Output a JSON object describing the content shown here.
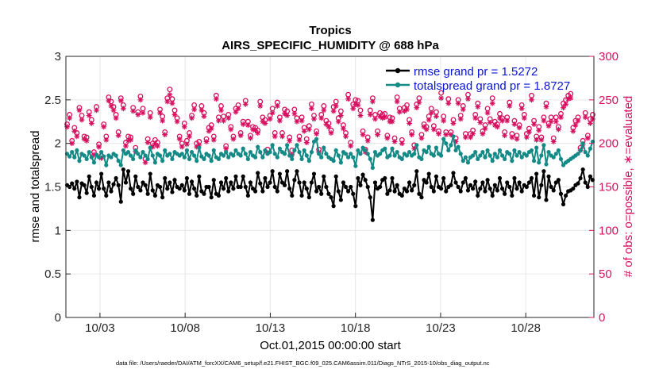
{
  "chart_data": {
    "type": "line",
    "title": "Tropics",
    "subtitle": "AIRS_SPECIFIC_HUMIDITY @ 688 hPa",
    "xlabel": "Oct.01,2015 00:00:00 start",
    "ylabel": "rmse and totalspread",
    "ylabel_right": "# of obs: o=possible, ∗=evaluated",
    "footnote": "data file: /Users/raeder/DAI/ATM_forcXX/CAM6_setup/f.e21.FHIST_BGC.f09_025.CAM6assim.011/Diags_NTrS_2015-10/obs_diag_output.nc",
    "x_range": [
      1,
      32
    ],
    "x_ticks": [
      3,
      8,
      13,
      18,
      23,
      28
    ],
    "x_tick_labels": [
      "10/03",
      "10/08",
      "10/13",
      "10/18",
      "10/23",
      "10/28"
    ],
    "ylim": [
      0,
      3
    ],
    "y_ticks": [
      "0",
      "0.5",
      "1",
      "1.5",
      "2",
      "2.5",
      "3"
    ],
    "ylim_right": [
      0,
      300
    ],
    "y_ticks_right": [
      "0",
      "50",
      "100",
      "150",
      "200",
      "250",
      "300"
    ],
    "grid": true,
    "legend_position": "top-right",
    "series": [
      {
        "name": "rmse grand pr = 1.5272",
        "axis": "left",
        "color": "#000000",
        "marker": "dot",
        "values": [
          1.52,
          1.5,
          1.54,
          1.48,
          1.56,
          1.38,
          1.54,
          1.52,
          1.43,
          1.62,
          1.5,
          1.4,
          1.55,
          1.48,
          1.65,
          1.48,
          1.4,
          1.55,
          1.45,
          1.53,
          1.6,
          1.52,
          1.33,
          1.7,
          1.55,
          1.68,
          1.48,
          1.42,
          1.62,
          1.5,
          1.46,
          1.55,
          1.52,
          1.42,
          1.65,
          1.46,
          1.4,
          1.52,
          1.5,
          1.38,
          1.6,
          1.48,
          1.55,
          1.44,
          1.58,
          1.5,
          1.48,
          1.52,
          1.46,
          1.6,
          1.42,
          1.56,
          1.48,
          1.4,
          1.62,
          1.45,
          1.42,
          1.5,
          1.5,
          1.38,
          1.58,
          1.42,
          1.4,
          1.55,
          1.48,
          1.6,
          1.45,
          1.55,
          1.48,
          1.62,
          1.5,
          1.5,
          1.62,
          1.5,
          1.4,
          1.55,
          1.48,
          1.45,
          1.66,
          1.54,
          1.45,
          1.6,
          1.5,
          1.55,
          1.68,
          1.5,
          1.45,
          1.65,
          1.55,
          1.52,
          1.68,
          1.48,
          1.4,
          1.58,
          1.68,
          1.55,
          1.4,
          1.55,
          1.48,
          1.38,
          1.55,
          1.65,
          1.45,
          1.5,
          1.42,
          1.62,
          1.5,
          1.42,
          1.38,
          1.28,
          1.62,
          1.45,
          1.35,
          1.55,
          1.5,
          1.45,
          1.5,
          1.42,
          1.28,
          1.6,
          1.52,
          1.64,
          1.58,
          1.5,
          1.38,
          1.12,
          1.55,
          1.48,
          1.5,
          1.58,
          1.6,
          1.42,
          1.46,
          1.6,
          1.45,
          1.52,
          1.42,
          1.4,
          1.48,
          1.45,
          1.55,
          1.46,
          1.52,
          1.68,
          1.42,
          1.38,
          1.58,
          1.55,
          1.65,
          1.5,
          1.45,
          1.62,
          1.5,
          1.48,
          1.6,
          1.45,
          1.5,
          1.52,
          1.66,
          1.55,
          1.5,
          1.45,
          1.55,
          1.6,
          1.46,
          1.52,
          1.48,
          1.56,
          1.4,
          1.48,
          1.55,
          1.45,
          1.58,
          1.48,
          1.4,
          1.52,
          1.46,
          1.6,
          1.48,
          1.42,
          1.55,
          1.5,
          1.4,
          1.6,
          1.48,
          1.55,
          1.45,
          1.52,
          1.5,
          1.55,
          1.6,
          1.4,
          1.65,
          1.38,
          1.52,
          1.68,
          1.35,
          1.62,
          1.5,
          1.46,
          1.55,
          1.58,
          1.42,
          1.3,
          1.4,
          1.45,
          1.46,
          1.48,
          1.52,
          1.54,
          1.6,
          1.7,
          1.55,
          1.5,
          1.62,
          1.58
        ]
      },
      {
        "name": "totalspread grand pr = 1.8727",
        "axis": "left",
        "color": "#138a86",
        "marker": "dot",
        "values": [
          1.88,
          1.85,
          1.9,
          1.84,
          1.92,
          1.8,
          1.88,
          1.86,
          1.82,
          1.9,
          1.84,
          1.78,
          1.87,
          1.84,
          1.9,
          1.85,
          1.75,
          1.86,
          1.84,
          1.88,
          1.86,
          1.8,
          1.75,
          1.92,
          1.88,
          1.9,
          1.86,
          1.82,
          1.92,
          1.88,
          1.84,
          1.9,
          1.86,
          1.82,
          1.95,
          1.86,
          1.78,
          1.88,
          1.86,
          1.8,
          1.92,
          1.86,
          1.88,
          1.82,
          1.9,
          1.88,
          1.86,
          1.88,
          1.84,
          1.92,
          1.82,
          1.9,
          1.86,
          1.8,
          1.95,
          1.85,
          1.82,
          1.88,
          1.86,
          1.8,
          1.92,
          1.84,
          1.82,
          1.88,
          1.86,
          1.9,
          1.84,
          1.88,
          1.86,
          1.92,
          1.88,
          1.86,
          1.94,
          1.88,
          1.82,
          1.9,
          1.86,
          1.84,
          1.96,
          1.9,
          1.84,
          1.92,
          1.88,
          1.9,
          1.98,
          1.88,
          1.84,
          1.94,
          1.9,
          1.88,
          1.98,
          1.86,
          1.82,
          1.92,
          1.98,
          1.9,
          1.82,
          1.92,
          1.86,
          1.8,
          1.9,
          2.02,
          2.05,
          1.88,
          1.84,
          1.95,
          1.88,
          1.84,
          1.82,
          1.8,
          1.92,
          1.86,
          1.78,
          1.9,
          1.88,
          1.84,
          1.88,
          1.84,
          1.74,
          1.92,
          1.88,
          1.95,
          1.92,
          1.88,
          1.82,
          1.72,
          1.9,
          1.86,
          1.88,
          1.92,
          1.94,
          1.84,
          1.86,
          1.94,
          1.86,
          1.9,
          1.84,
          1.82,
          1.88,
          1.86,
          1.9,
          1.86,
          1.88,
          1.98,
          1.84,
          1.82,
          1.92,
          1.9,
          1.96,
          1.88,
          1.86,
          1.95,
          1.88,
          1.86,
          2.05,
          2.0,
          1.92,
          1.98,
          2.08,
          1.92,
          1.96,
          1.88,
          1.8,
          1.84,
          1.78,
          1.84,
          1.86,
          1.9,
          1.82,
          1.86,
          1.9,
          1.84,
          1.92,
          1.86,
          1.8,
          1.88,
          1.84,
          1.92,
          1.86,
          1.82,
          1.9,
          1.88,
          1.8,
          1.92,
          1.86,
          1.9,
          1.84,
          1.88,
          1.86,
          1.9,
          1.92,
          1.8,
          1.95,
          1.78,
          1.86,
          1.98,
          1.76,
          1.9,
          1.86,
          1.84,
          1.88,
          1.92,
          1.82,
          1.75,
          1.78,
          1.8,
          1.82,
          1.84,
          1.86,
          1.88,
          1.92,
          2.0,
          1.9,
          1.86,
          1.94,
          2.02
        ]
      },
      {
        "name": "obs possible",
        "axis": "right",
        "color": "#d6105f",
        "marker": "o",
        "values": [
          222,
          233,
          203,
          218,
          212,
          241,
          232,
          208,
          207,
          236,
          227,
          190,
          242,
          199,
          186,
          222,
          208,
          253,
          248,
          242,
          233,
          213,
          252,
          244,
          201,
          208,
          207,
          241,
          195,
          236,
          254,
          240,
          182,
          205,
          235,
          200,
          204,
          201,
          239,
          231,
          213,
          252,
          262,
          251,
          238,
          229,
          208,
          200,
          223,
          203,
          212,
          232,
          244,
          200,
          202,
          243,
          235,
          205,
          218,
          221,
          208,
          255,
          230,
          243,
          231,
          197,
          233,
          219,
          208,
          240,
          244,
          212,
          225,
          249,
          225,
          209,
          219,
          218,
          215,
          248,
          230,
          227,
          193,
          232,
          240,
          212,
          247,
          230,
          212,
          239,
          237,
          207,
          192,
          239,
          229,
          208,
          230,
          218,
          205,
          220,
          245,
          232,
          214,
          193,
          233,
          243,
          226,
          223,
          215,
          242,
          248,
          229,
          237,
          221,
          212,
          256,
          201,
          245,
          250,
          249,
          238,
          214,
          193,
          207,
          238,
          252,
          233,
          214,
          235,
          233,
          234,
          209,
          230,
          229,
          206,
          253,
          240,
          204,
          241,
          244,
          227,
          213,
          198,
          245,
          252,
          210,
          222,
          219,
          231,
          240,
          220,
          236,
          214,
          258,
          231,
          213,
          251,
          213,
          227,
          206,
          250,
          232,
          243,
          211,
          256,
          211,
          215,
          233,
          246,
          228,
          214,
          221,
          240,
          228,
          252,
          225,
          222,
          234,
          229,
          213,
          230,
          247,
          211,
          226,
          209,
          221,
          244,
          233,
          211,
          217,
          255,
          226,
          208,
          219,
          207,
          230,
          246,
          223,
          230,
          206,
          230,
          219,
          234,
          246,
          250,
          255,
          257,
          218,
          226,
          230,
          195,
          203,
          235,
          209,
          228,
          233
        ]
      },
      {
        "name": "obs evaluated",
        "axis": "right",
        "color": "#d6105f",
        "marker": "*",
        "values": [
          219,
          229,
          200,
          214,
          208,
          238,
          227,
          205,
          203,
          232,
          223,
          187,
          238,
          196,
          183,
          219,
          204,
          249,
          243,
          238,
          229,
          209,
          249,
          240,
          197,
          203,
          204,
          237,
          191,
          233,
          250,
          235,
          178,
          201,
          230,
          196,
          200,
          197,
          235,
          226,
          210,
          248,
          256,
          246,
          233,
          225,
          205,
          196,
          219,
          199,
          208,
          229,
          239,
          196,
          198,
          238,
          231,
          202,
          214,
          217,
          204,
          251,
          226,
          238,
          226,
          194,
          229,
          216,
          205,
          236,
          240,
          209,
          222,
          245,
          221,
          206,
          216,
          215,
          212,
          243,
          225,
          223,
          189,
          228,
          235,
          208,
          243,
          226,
          208,
          234,
          232,
          203,
          187,
          234,
          225,
          204,
          226,
          214,
          201,
          216,
          240,
          228,
          211,
          190,
          229,
          238,
          222,
          219,
          212,
          237,
          243,
          225,
          232,
          217,
          208,
          251,
          197,
          240,
          245,
          244,
          232,
          210,
          190,
          203,
          233,
          248,
          228,
          210,
          231,
          229,
          230,
          206,
          225,
          225,
          202,
          248,
          236,
          200,
          237,
          239,
          223,
          210,
          194,
          241,
          247,
          206,
          219,
          216,
          227,
          235,
          216,
          231,
          211,
          252,
          226,
          210,
          246,
          210,
          223,
          202,
          246,
          228,
          239,
          207,
          251,
          207,
          211,
          229,
          242,
          224,
          211,
          217,
          235,
          224,
          246,
          221,
          219,
          229,
          226,
          209,
          226,
          243,
          207,
          222,
          205,
          218,
          240,
          229,
          207,
          213,
          250,
          222,
          204,
          215,
          204,
          226,
          242,
          220,
          225,
          202,
          225,
          216,
          230,
          241,
          245,
          251,
          252,
          214,
          221,
          226,
          192,
          199,
          230,
          206,
          223,
          228
        ]
      }
    ]
  }
}
